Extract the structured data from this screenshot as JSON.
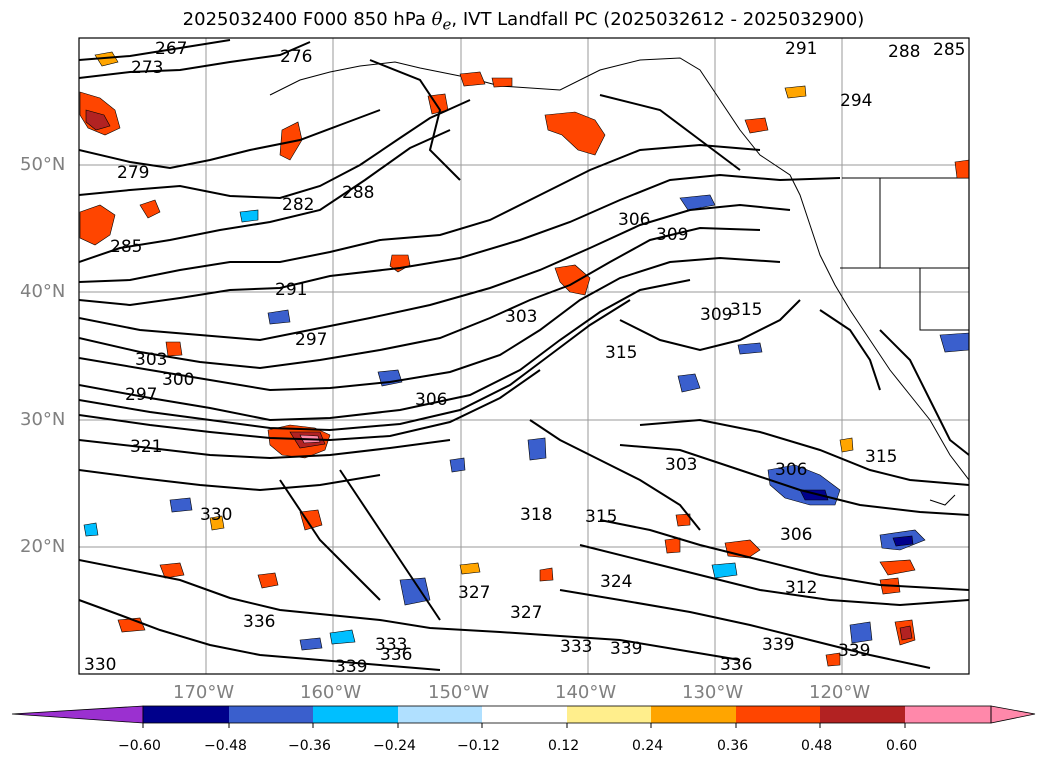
{
  "title": {
    "prefix": "2025032400 F000 850 hPa ",
    "theta_symbol": "θ",
    "theta_sub": "e",
    "suffix": ", IVT Landfall PC (2025032612 - 2025032900)"
  },
  "map": {
    "projection": "cylindrical",
    "lon_range": [
      -180,
      -110
    ],
    "lat_range": [
      10,
      60
    ],
    "lat_ticks": [
      "20°N",
      "30°N",
      "40°N",
      "50°N"
    ],
    "lon_ticks": [
      "170°W",
      "160°W",
      "150°W",
      "140°W",
      "130°W",
      "120°W"
    ],
    "grid": true,
    "contour_field": "850 hPa theta-e (K)",
    "contour_labels": [
      "267",
      "273",
      "276",
      "279",
      "282",
      "285",
      "288",
      "291",
      "294",
      "297",
      "300",
      "303",
      "306",
      "309",
      "312",
      "315",
      "318",
      "321",
      "324",
      "327",
      "330",
      "333",
      "336",
      "339"
    ]
  },
  "colorbar": {
    "ticks": [
      "−0.60",
      "−0.48",
      "−0.36",
      "−0.24",
      "−0.12",
      "0.12",
      "0.24",
      "0.36",
      "0.48",
      "0.60"
    ],
    "colors": [
      "#9b30d0",
      "#00008b",
      "#3a5fcd",
      "#00bfff",
      "#b0e0ff",
      "#ffffff",
      "#ffee8c",
      "#ffa500",
      "#ff4500",
      "#b22222",
      "#ff88aa"
    ],
    "extend": "both"
  }
}
